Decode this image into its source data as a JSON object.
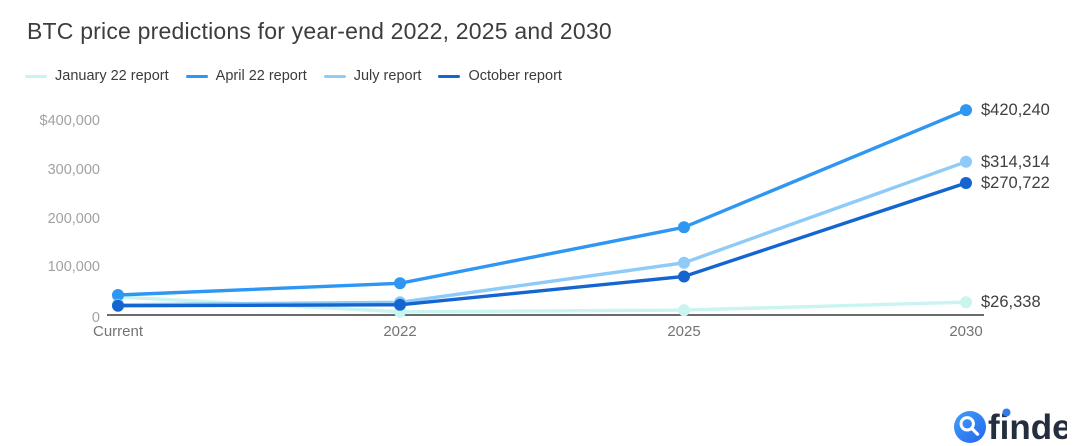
{
  "chart_data": {
    "type": "line",
    "title": "BTC price predictions for year-end 2022, 2025 and 2030",
    "categories": [
      "Current",
      "2022",
      "2025",
      "2030"
    ],
    "series": [
      {
        "name": "January 22 report",
        "color": "#c9f4ef",
        "values": [
          37000,
          6500,
          10000,
          26338
        ],
        "end_label": "$26,338"
      },
      {
        "name": "April 22 report",
        "color": "#2e96f3",
        "values": [
          41000,
          65000,
          180000,
          420240
        ],
        "end_label": "$420,240"
      },
      {
        "name": "July report",
        "color": "#8ecbf8",
        "values": [
          21000,
          26000,
          107000,
          314314
        ],
        "end_label": "$314,314"
      },
      {
        "name": "October report",
        "color": "#1565d0",
        "values": [
          19000,
          21000,
          79000,
          270722
        ],
        "end_label": "$270,722"
      }
    ],
    "yticks": [
      {
        "label": "$400,000",
        "value": 400000
      },
      {
        "label": "300,000",
        "value": 300000
      },
      {
        "label": "200,000",
        "value": 200000
      },
      {
        "label": "100,000",
        "value": 100000
      },
      {
        "label": "0",
        "value": 0
      }
    ],
    "ylim": [
      0,
      430000
    ],
    "grid": false,
    "legend_position": "top"
  },
  "brand": {
    "logo_label": "finder",
    "logo_circle_color": "#2f7bf3",
    "logo_text_color": "#242e3e"
  }
}
